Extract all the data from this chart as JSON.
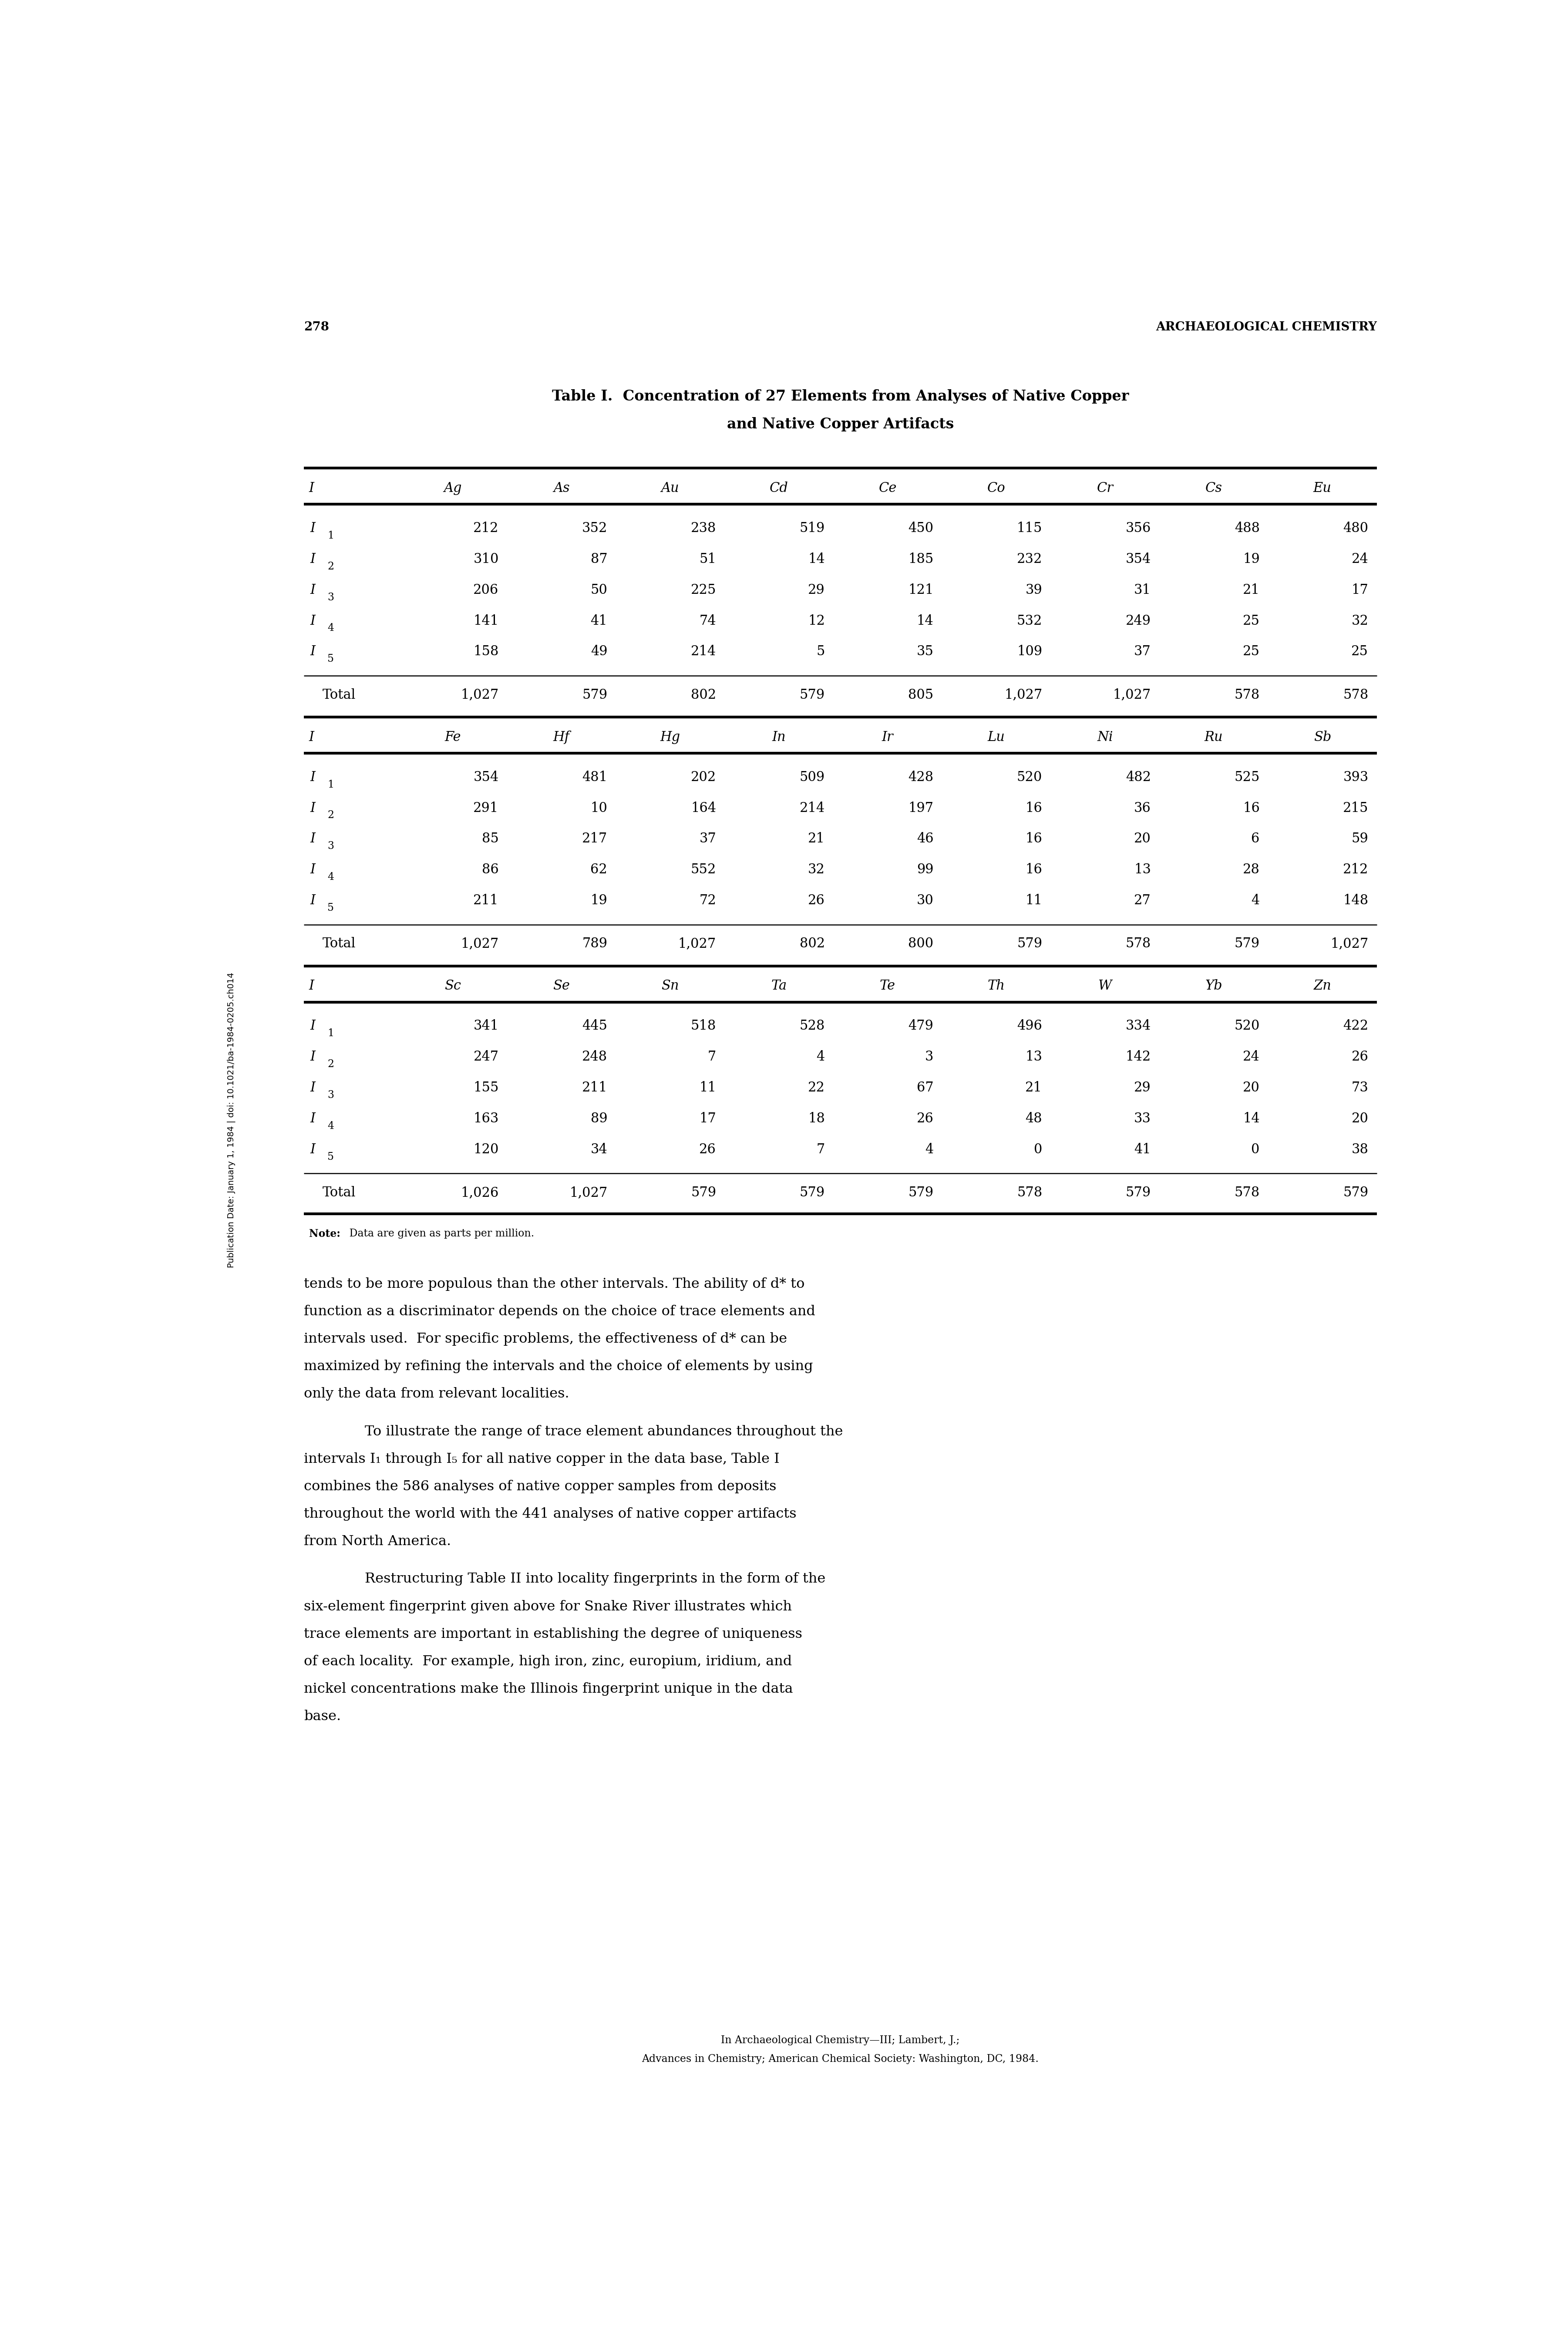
{
  "page_number": "278",
  "header_right": "ARCHAEOLOGICAL CHEMISTRY",
  "title_line1": "Table I.  Concentration of 27 Elements from Analyses of Native Copper",
  "title_line2": "and Native Copper Artifacts",
  "section1_header": [
    "I",
    "Ag",
    "As",
    "Au",
    "Cd",
    "Ce",
    "Co",
    "Cr",
    "Cs",
    "Eu"
  ],
  "section1_rows": [
    [
      "I",
      "1",
      "212",
      "352",
      "238",
      "519",
      "450",
      "115",
      "356",
      "488",
      "480"
    ],
    [
      "I",
      "2",
      "310",
      "87",
      "51",
      "14",
      "185",
      "232",
      "354",
      "19",
      "24"
    ],
    [
      "I",
      "3",
      "206",
      "50",
      "225",
      "29",
      "121",
      "39",
      "31",
      "21",
      "17"
    ],
    [
      "I",
      "4",
      "141",
      "41",
      "74",
      "12",
      "14",
      "532",
      "249",
      "25",
      "32"
    ],
    [
      "I",
      "5",
      "158",
      "49",
      "214",
      "5",
      "35",
      "109",
      "37",
      "25",
      "25"
    ]
  ],
  "section1_total": [
    "Total",
    "1,027",
    "579",
    "802",
    "579",
    "805",
    "1,027",
    "1,027",
    "578",
    "578"
  ],
  "section2_header": [
    "I",
    "Fe",
    "Hf",
    "Hg",
    "In",
    "Ir",
    "Lu",
    "Ni",
    "Ru",
    "Sb"
  ],
  "section2_rows": [
    [
      "I",
      "1",
      "354",
      "481",
      "202",
      "509",
      "428",
      "520",
      "482",
      "525",
      "393"
    ],
    [
      "I",
      "2",
      "291",
      "10",
      "164",
      "214",
      "197",
      "16",
      "36",
      "16",
      "215"
    ],
    [
      "I",
      "3",
      "85",
      "217",
      "37",
      "21",
      "46",
      "16",
      "20",
      "6",
      "59"
    ],
    [
      "I",
      "4",
      "86",
      "62",
      "552",
      "32",
      "99",
      "16",
      "13",
      "28",
      "212"
    ],
    [
      "I",
      "5",
      "211",
      "19",
      "72",
      "26",
      "30",
      "11",
      "27",
      "4",
      "148"
    ]
  ],
  "section2_total": [
    "Total",
    "1,027",
    "789",
    "1,027",
    "802",
    "800",
    "579",
    "578",
    "579",
    "1,027"
  ],
  "section3_header": [
    "I",
    "Sc",
    "Se",
    "Sn",
    "Ta",
    "Te",
    "Th",
    "W",
    "Yb",
    "Zn"
  ],
  "section3_rows": [
    [
      "I",
      "1",
      "341",
      "445",
      "518",
      "528",
      "479",
      "496",
      "334",
      "520",
      "422"
    ],
    [
      "I",
      "2",
      "247",
      "248",
      "7",
      "4",
      "3",
      "13",
      "142",
      "24",
      "26"
    ],
    [
      "I",
      "3",
      "155",
      "211",
      "11",
      "22",
      "67",
      "21",
      "29",
      "20",
      "73"
    ],
    [
      "I",
      "4",
      "163",
      "89",
      "17",
      "18",
      "26",
      "48",
      "33",
      "14",
      "20"
    ],
    [
      "I",
      "5",
      "120",
      "34",
      "26",
      "7",
      "4",
      "0",
      "41",
      "0",
      "38"
    ]
  ],
  "section3_total": [
    "Total",
    "1,026",
    "1,027",
    "579",
    "579",
    "579",
    "578",
    "579",
    "578",
    "579"
  ],
  "note_bold": "Note:",
  "note_rest": " Data are given as parts per million.",
  "body_paragraphs": [
    {
      "indent": false,
      "lines": [
        "tends to be more populous than the other intervals. The ability of d* to",
        "function as a discriminator depends on the choice of trace elements and",
        "intervals used.  For specific problems, the effectiveness of d* can be",
        "maximized by refining the intervals and the choice of elements by using",
        "only the data from relevant localities."
      ]
    },
    {
      "indent": true,
      "lines": [
        "To illustrate the range of trace element abundances throughout the",
        "intervals I₁ through I₅ for all native copper in the data base, Table I",
        "combines the 586 analyses of native copper samples from deposits",
        "throughout the world with the 441 analyses of native copper artifacts",
        "from North America."
      ]
    },
    {
      "indent": true,
      "lines": [
        "Restructuring Table II into locality fingerprints in the form of the",
        "six-element fingerprint given above for Snake River illustrates which",
        "trace elements are important in establishing the degree of uniqueness",
        "of each locality.  For example, high iron, zinc, europium, iridium, and",
        "nickel concentrations make the Illinois fingerprint unique in the data",
        "base."
      ]
    }
  ],
  "footer_line1": "In Archaeological Chemistry—III; Lambert, J.;",
  "footer_line2": "Advances in Chemistry; American Chemical Society: Washington, DC, 1984.",
  "sidebar_text": "Publication Date: January 1, 1984 | doi: 10.1021/ba-1984-0205.ch014",
  "bg_color": "#ffffff",
  "text_color": "#000000"
}
